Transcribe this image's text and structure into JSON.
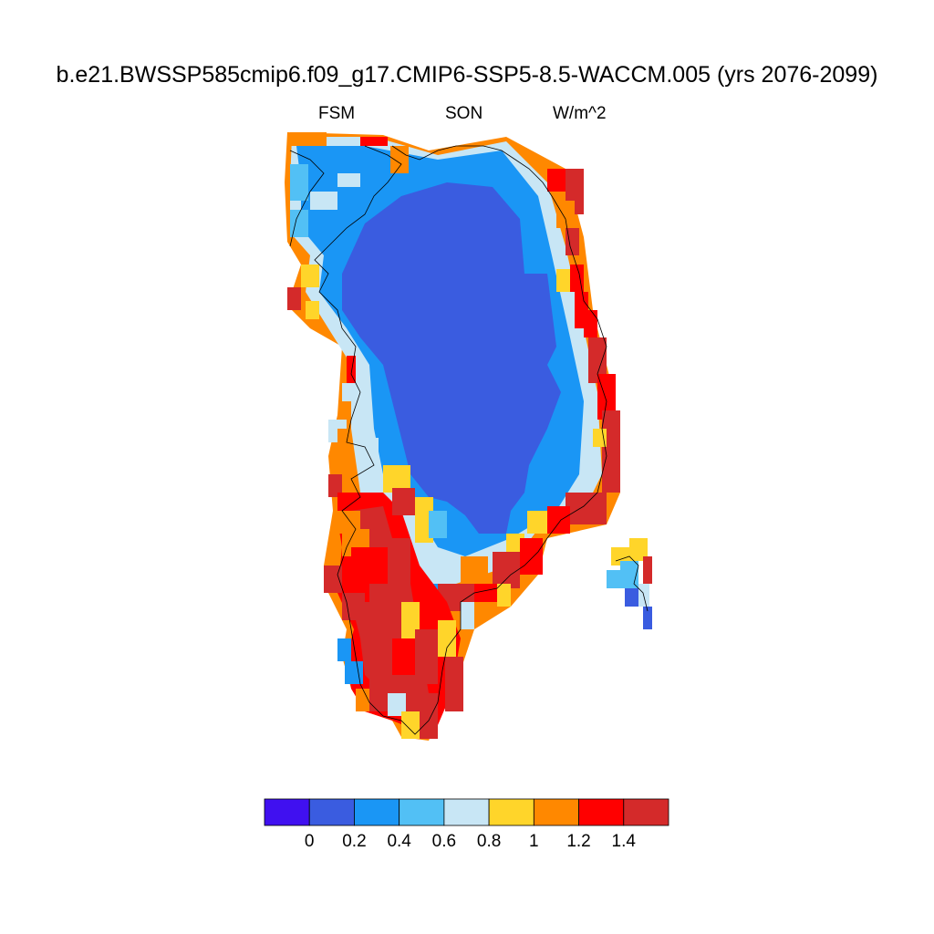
{
  "figure": {
    "title": "b.e21.BWSSP585cmip6.f09_g17.CMIP6-SSP5-8.5-WACCM.005 (yrs 2076-2099)",
    "left_label": "FSM",
    "center_label": "SON",
    "right_label": "W/m^2"
  },
  "colorbar": {
    "colors": [
      "#4010f0",
      "#3a5ce0",
      "#1a96f5",
      "#52c0f5",
      "#c8e6f5",
      "#ffd52a",
      "#ff8800",
      "#ff0000",
      "#d42a2a"
    ],
    "tick_labels": [
      "0",
      "0.2",
      "0.4",
      "0.6",
      "0.8",
      "1",
      "1.2",
      "1.4"
    ]
  },
  "map": {
    "region": "Greenland",
    "value_classes": [
      "<0",
      "0-0.2",
      "0.2-0.4",
      "0.4-0.6",
      "0.6-0.8",
      "0.8-1",
      "1-1.2",
      "1.2-1.4",
      ">1.4"
    ]
  }
}
